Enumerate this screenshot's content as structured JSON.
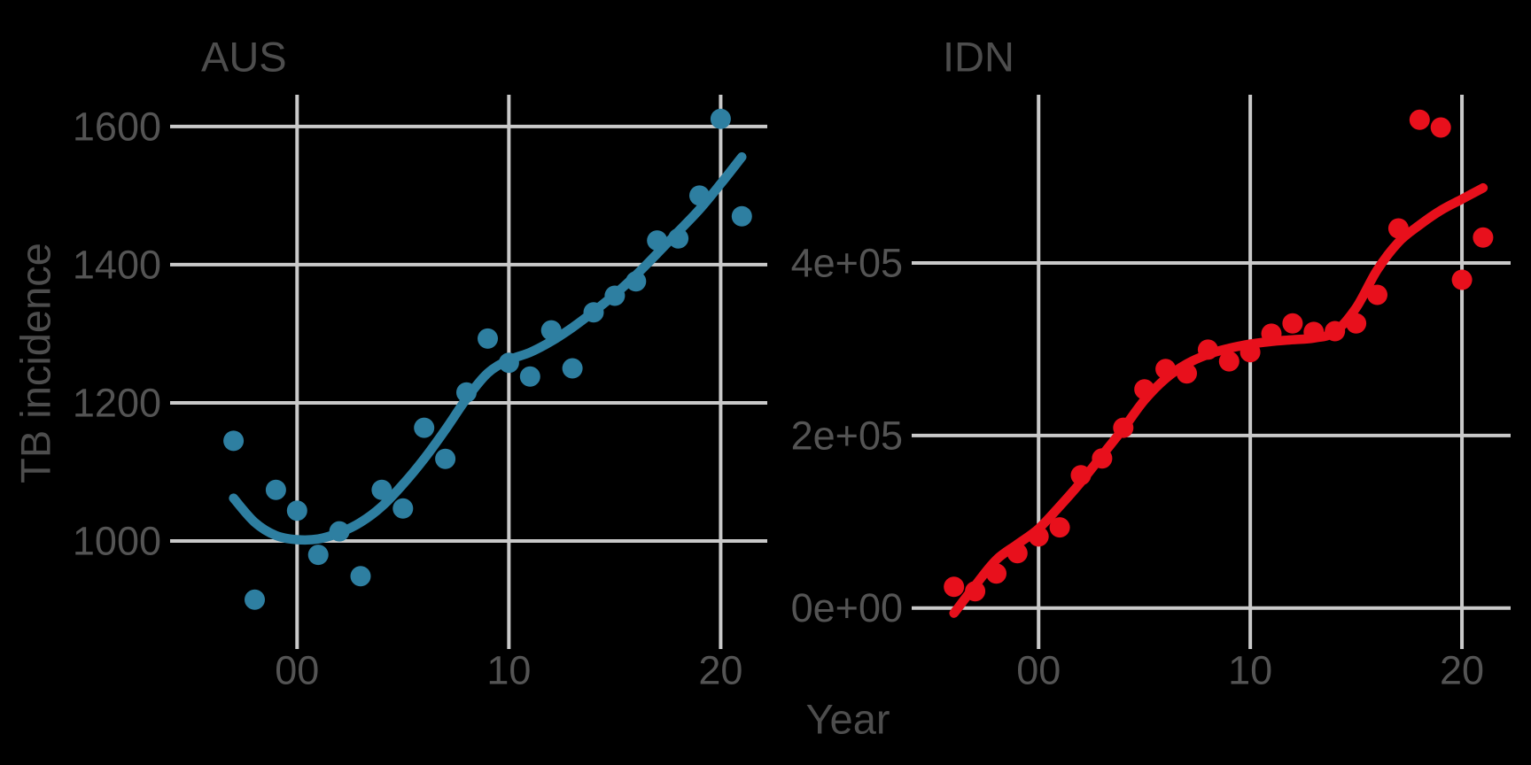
{
  "figure": {
    "background": "#000000",
    "grid_color": "#C9C9C9",
    "tick_color": "#C9C9C9",
    "label_color": "#545454",
    "title_color": "#4D4D4D"
  },
  "chart_data": {
    "type": "scatter",
    "title": "",
    "xlabel": "Year",
    "ylabel": "TB incidence",
    "grid": true,
    "legend": "none",
    "facets": [
      {
        "label": "AUS",
        "color": "#2E7FA1",
        "x_range": [
          1994.8,
          2022.2
        ],
        "y_range": [
          868,
          1646
        ],
        "x_ticks": [
          {
            "label": "00",
            "value": 2000
          },
          {
            "label": "10",
            "value": 2010
          },
          {
            "label": "20",
            "value": 2020
          }
        ],
        "y_ticks": [
          {
            "label": "1000",
            "value": 1000
          },
          {
            "label": "1200",
            "value": 1200
          },
          {
            "label": "1400",
            "value": 1400
          },
          {
            "label": "1600",
            "value": 1600
          }
        ],
        "points": {
          "x": [
            1997,
            1998,
            1999,
            2000,
            2001,
            2002,
            2003,
            2004,
            2005,
            2006,
            2007,
            2008,
            2009,
            2010,
            2011,
            2012,
            2013,
            2014,
            2015,
            2016,
            2017,
            2018,
            2019,
            2020,
            2021
          ],
          "y": [
            1145,
            915,
            1074,
            1044,
            980,
            1014,
            949,
            1074,
            1047,
            1164,
            1119,
            1215,
            1293,
            1258,
            1238,
            1305,
            1250,
            1331,
            1355,
            1376,
            1435,
            1438,
            1500,
            1611,
            1470
          ]
        },
        "smooth": {
          "x": [
            1997,
            1998,
            1999,
            2000,
            2001,
            2002,
            2003,
            2004,
            2005,
            2006,
            2007,
            2008,
            2009,
            2010,
            2011,
            2012,
            2013,
            2014,
            2015,
            2016,
            2017,
            2018,
            2019,
            2020,
            2021
          ],
          "y": [
            1062,
            1027,
            1008,
            1002,
            1003,
            1012,
            1027,
            1050,
            1082,
            1119,
            1161,
            1206,
            1243,
            1262,
            1273,
            1289,
            1309,
            1332,
            1357,
            1385,
            1416,
            1448,
            1480,
            1517,
            1556
          ]
        }
      },
      {
        "label": "IDN",
        "color": "#E8101C",
        "x_range": [
          1994.8,
          2022.3
        ],
        "y_range": [
          -28000,
          595000
        ],
        "x_ticks": [
          {
            "label": "00",
            "value": 2000
          },
          {
            "label": "10",
            "value": 2010
          },
          {
            "label": "20",
            "value": 2020
          }
        ],
        "y_ticks": [
          {
            "label": "0e+00",
            "value": 0
          },
          {
            "label": "2e+05",
            "value": 200000
          },
          {
            "label": "4e+05",
            "value": 400000
          }
        ],
        "points": {
          "x": [
            1996,
            1997,
            1998,
            1999,
            2000,
            2001,
            2002,
            2003,
            2004,
            2005,
            2006,
            2007,
            2008,
            2009,
            2010,
            2011,
            2012,
            2013,
            2014,
            2015,
            2016,
            2017,
            2018,
            2019,
            2020,
            2021
          ],
          "y": [
            24500,
            19500,
            40000,
            63500,
            83000,
            93500,
            154000,
            173500,
            209000,
            253500,
            277000,
            272000,
            299500,
            286000,
            296500,
            318000,
            330000,
            320000,
            321000,
            330000,
            363000,
            440000,
            566000,
            557000,
            380500,
            429500
          ]
        },
        "smooth": {
          "x": [
            1996,
            1997,
            1998,
            1999,
            2000,
            2001,
            2002,
            2003,
            2004,
            2005,
            2006,
            2007,
            2008,
            2009,
            2010,
            2011,
            2012,
            2013,
            2014,
            2015,
            2016,
            2017,
            2018,
            2019,
            2020,
            2021
          ],
          "y": [
            -6000,
            26000,
            56000,
            74000,
            92000,
            118000,
            146000,
            177000,
            208000,
            241000,
            266000,
            283000,
            294000,
            301000,
            306000,
            309000,
            311000,
            313000,
            320000,
            348000,
            392000,
            424000,
            444000,
            461000,
            474000,
            487000
          ]
        }
      }
    ]
  }
}
